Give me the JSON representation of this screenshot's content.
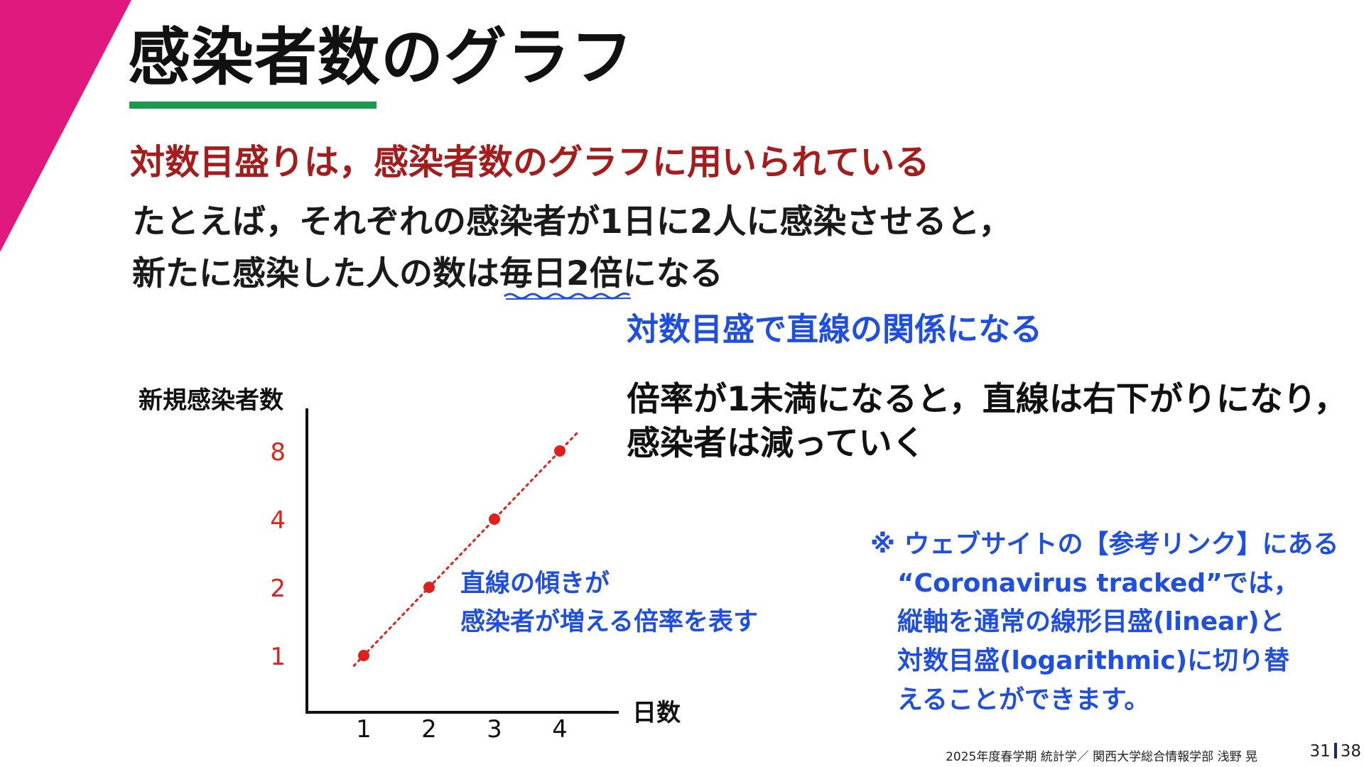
{
  "slide": {
    "title": "感染者数のグラフ",
    "subtitle": "対数目盛りは，感染者数のグラフに用いられている",
    "body_line1": "たとえば，それぞれの感染者が1日に2人に感染させると，",
    "body_line2_before": "新たに感染した人の数は",
    "body_line2_emph": "毎日2倍",
    "body_line2_after": "になる",
    "blue_note": "対数目盛で直線の関係になる",
    "right_line1": "倍率が1未満になると，直線は右下がりになり，",
    "right_line2": "感染者は減っていく",
    "slope_note_line1": "直線の傾きが",
    "slope_note_line2": "感染者が増える倍率を表す",
    "ref_lines": [
      "※ ウェブサイトの【参考リンク】にある",
      "“Coronavirus tracked”では，",
      "縦軸を通常の線形目盛(linear)と",
      "対数目盛(logarithmic)に切り替",
      "えることができます。"
    ],
    "footer_text": "2025年度春学期 統計学／ 関西大学総合情報学部 浅野 晃",
    "page_current": "31",
    "page_total": "38"
  },
  "colors": {
    "accent_magenta": "#e0197f",
    "underline_green": "#1a9a4b",
    "subtitle_red": "#a51c1c",
    "note_blue": "#1f4fe0",
    "data_red": "#e0201c"
  },
  "chart_data": {
    "type": "scatter",
    "ylabel": "新規感染者数",
    "xlabel": "日数",
    "x_ticks": [
      "1",
      "2",
      "3",
      "4"
    ],
    "y_ticks": [
      "1",
      "2",
      "4",
      "8"
    ],
    "y_scale": "log2",
    "points": [
      {
        "x": 1,
        "y": 1
      },
      {
        "x": 2,
        "y": 2
      },
      {
        "x": 3,
        "y": 4
      },
      {
        "x": 4,
        "y": 8
      }
    ],
    "trend_line": "dotted",
    "grid": false
  }
}
